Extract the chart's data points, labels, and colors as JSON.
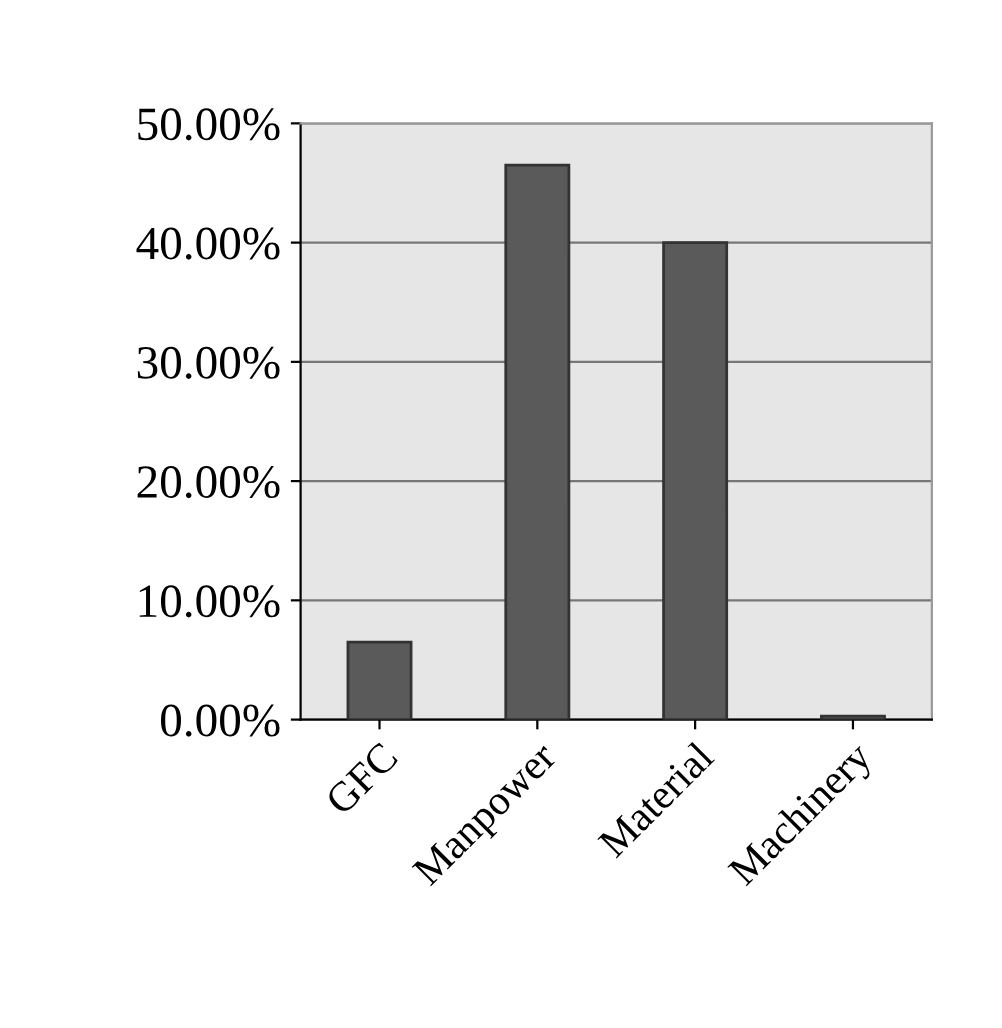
{
  "chart_data": {
    "type": "bar",
    "categories": [
      "GFC",
      "Manpower",
      "Material",
      "Machinery"
    ],
    "values": [
      6.5,
      46.5,
      40,
      0.3
    ],
    "color": "#5a5a5a",
    "ylim": [
      0,
      50
    ],
    "yticks": [
      {
        "value": 0,
        "label": "0.00%"
      },
      {
        "value": 10,
        "label": "10.00%"
      },
      {
        "value": 20,
        "label": "20.00%"
      },
      {
        "value": 30,
        "label": "30.00%"
      },
      {
        "value": 40,
        "label": "40.00%"
      },
      {
        "value": 50,
        "label": "50.00%"
      }
    ],
    "grid": "y"
  }
}
